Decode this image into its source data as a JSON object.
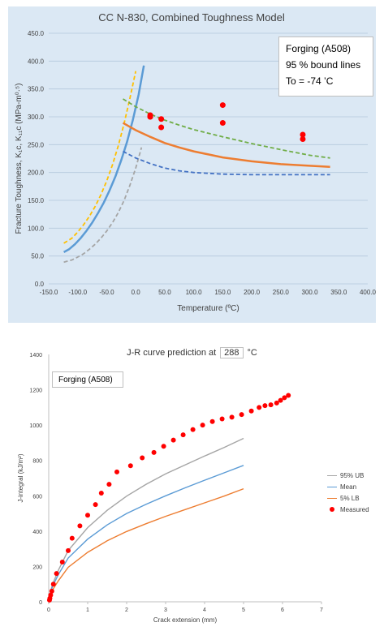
{
  "chart_data": [
    {
      "type": "line",
      "title": "CC N-830, Combined Toughness Model",
      "xlabel": "Temperature (ºC)",
      "ylabel": "Fracture Toughness, K₁c, K₁₁c (MPa-m⁰·⁵)",
      "xlim": [
        -150,
        400
      ],
      "ylim": [
        0,
        450
      ],
      "xticks": [
        "-150.0",
        "-100.0",
        "-50.0",
        "0.0",
        "50.0",
        "100.0",
        "150.0",
        "200.0",
        "250.0",
        "300.0",
        "350.0",
        "400.0"
      ],
      "yticks": [
        "0.0",
        "50.0",
        "100.0",
        "150.0",
        "200.0",
        "250.0",
        "300.0",
        "350.0",
        "400.0",
        "450.0"
      ],
      "grid": true,
      "legend_lines": [
        "Forging (A508)",
        "95 % bound lines",
        "To = -74 ’C"
      ],
      "series": [
        {
          "color": "#5b9bd5",
          "style": "solid",
          "x": [
            -124,
            -115,
            -105,
            -95,
            -85,
            -75,
            -65,
            -55,
            -45,
            -35,
            -25,
            -15,
            -5,
            5,
            14
          ],
          "y": [
            57,
            62,
            71,
            82,
            95,
            110,
            127,
            146,
            168,
            193,
            222,
            255,
            294,
            340,
            392
          ]
        },
        {
          "color": "#ffc000",
          "style": "dashed",
          "x": [
            -124,
            -110,
            -100,
            -90,
            -80,
            -70,
            -60,
            -50,
            -40,
            -30,
            -20,
            -10,
            0
          ],
          "y": [
            73,
            82,
            93,
            106,
            121,
            139,
            160,
            185,
            214,
            248,
            288,
            333,
            382
          ]
        },
        {
          "color": "#a5a5a5",
          "style": "dashed",
          "x": [
            -124,
            -110,
            -100,
            -90,
            -80,
            -70,
            -60,
            -50,
            -40,
            -30,
            -20,
            -10,
            0,
            10
          ],
          "y": [
            39,
            43,
            48,
            54,
            62,
            71,
            82,
            95,
            110,
            128,
            150,
            177,
            208,
            245
          ]
        },
        {
          "color": "#ed7d31",
          "style": "solid",
          "x": [
            -22,
            0,
            25,
            50,
            75,
            100,
            150,
            200,
            250,
            300,
            335
          ],
          "y": [
            289,
            276,
            264,
            253,
            245,
            238,
            227,
            220,
            215,
            212,
            210
          ]
        },
        {
          "color": "#70ad47",
          "style": "dashed",
          "x": [
            -22,
            0,
            25,
            50,
            75,
            100,
            150,
            200,
            250,
            300,
            335
          ],
          "y": [
            332,
            318,
            305,
            294,
            285,
            277,
            264,
            252,
            241,
            231,
            226
          ]
        },
        {
          "color": "#4472c4",
          "style": "dashed",
          "x": [
            -22,
            0,
            25,
            50,
            75,
            100,
            150,
            200,
            250,
            300,
            335
          ],
          "y": [
            238,
            226,
            216,
            208,
            203,
            200,
            197,
            196,
            196,
            196,
            196
          ]
        }
      ],
      "points": {
        "color": "#ff0000",
        "x": [
          25,
          25,
          25,
          44,
          44,
          150,
          150,
          288,
          288
        ],
        "y": [
          303,
          300,
          300,
          296,
          281,
          321,
          289,
          268,
          260
        ]
      }
    },
    {
      "type": "line",
      "title_prefix": "J-R curve prediction at",
      "title_value": "288",
      "title_suffix": "°C",
      "xlabel": "Crack extension (mm)",
      "ylabel": "J-integral (kJ/m²)",
      "xlim": [
        0,
        7
      ],
      "ylim": [
        0,
        1400
      ],
      "xticks": [
        "0",
        "1",
        "2",
        "3",
        "4",
        "5",
        "6",
        "7"
      ],
      "yticks": [
        "0",
        "200",
        "400",
        "600",
        "800",
        "1000",
        "1200",
        "1400"
      ],
      "grid": false,
      "label": "Forging (A508)",
      "series": [
        {
          "name": "95% UB",
          "color": "#a5a5a5",
          "x": [
            0,
            0.05,
            0.1,
            0.25,
            0.5,
            1,
            1.5,
            2,
            2.5,
            3,
            3.5,
            4,
            4.5,
            5
          ],
          "y": [
            0,
            62,
            100,
            180,
            290,
            420,
            518,
            598,
            665,
            724,
            775,
            825,
            873,
            925
          ]
        },
        {
          "name": "Mean",
          "color": "#5b9bd5",
          "x": [
            0,
            0.05,
            0.1,
            0.25,
            0.5,
            1,
            1.5,
            2,
            2.5,
            3,
            3.5,
            4,
            4.5,
            5
          ],
          "y": [
            0,
            55,
            88,
            155,
            248,
            355,
            435,
            500,
            552,
            600,
            645,
            688,
            730,
            772
          ]
        },
        {
          "name": "5% LB",
          "color": "#ed7d31",
          "x": [
            0,
            0.05,
            0.1,
            0.25,
            0.5,
            1,
            1.5,
            2,
            2.5,
            3,
            3.5,
            4,
            4.5,
            5
          ],
          "y": [
            0,
            42,
            68,
            120,
            195,
            280,
            345,
            398,
            442,
            484,
            522,
            560,
            598,
            640
          ]
        }
      ],
      "measured": {
        "name": "Measured",
        "color": "#ff0000",
        "x": [
          0.02,
          0.03,
          0.05,
          0.08,
          0.12,
          0.2,
          0.35,
          0.5,
          0.6,
          0.8,
          1.0,
          1.2,
          1.35,
          1.55,
          1.75,
          2.1,
          2.4,
          2.7,
          2.95,
          3.2,
          3.45,
          3.7,
          3.95,
          4.2,
          4.45,
          4.7,
          4.95,
          5.2,
          5.4,
          5.55,
          5.7,
          5.85,
          5.95,
          6.05,
          6.15
        ],
        "y": [
          10,
          20,
          38,
          60,
          100,
          160,
          225,
          290,
          360,
          430,
          490,
          550,
          615,
          665,
          735,
          770,
          815,
          845,
          880,
          915,
          945,
          975,
          1000,
          1020,
          1035,
          1045,
          1060,
          1080,
          1100,
          1110,
          1115,
          1125,
          1140,
          1155,
          1168
        ]
      }
    }
  ]
}
